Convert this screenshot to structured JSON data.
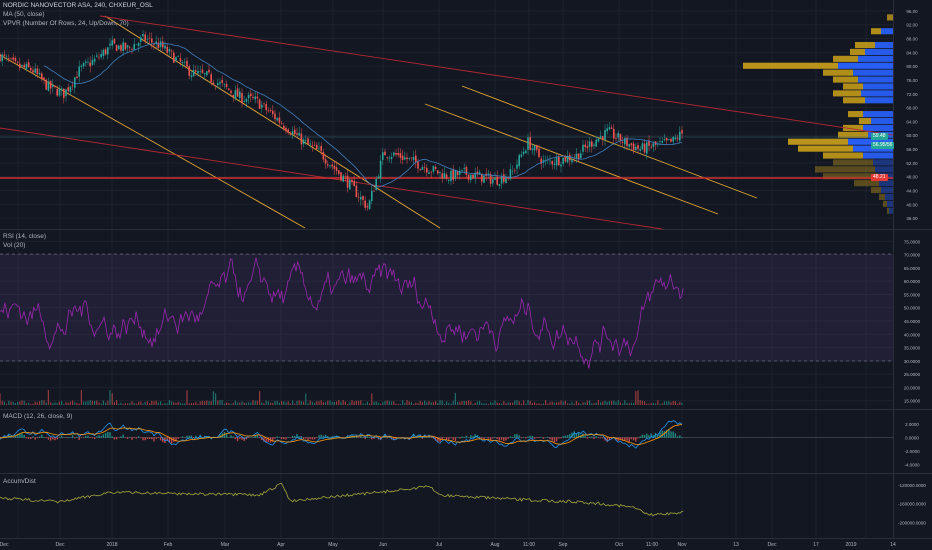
{
  "legend": {
    "symbol": "NORDIC NANOVECTOR ASA, 240, CHXEUR_OSL",
    "ma": "MA (50, close)",
    "vpvr": "VPVR (Number Of Rows, 24, Up/Down, 70)",
    "rsi": "RSI (14, close)",
    "vol": "Vol (20)",
    "macd": "MACD (12, 26, close, 9)",
    "accum": "Accum/Dist"
  },
  "price_tags": {
    "upper": "59.48",
    "current": "56.95/56",
    "support": "48.21"
  },
  "x_axis": [
    "Dec",
    "Dec",
    "2018",
    "Feb",
    "Mar",
    "Apr",
    "May",
    "Jun",
    "Jul",
    "Aug",
    "11:00",
    "Sep",
    "Oct",
    "11:00",
    "Nov",
    "13",
    "Dec",
    "17",
    "2019",
    "14"
  ],
  "colors": {
    "background": "#131722",
    "candle_up": "#26a69a",
    "candle_down": "#ef5350",
    "trendline_orange": "#e3a633",
    "trendline_red": "#b22833",
    "rsi_line": "#9c27b0",
    "macd_line": "#2196f3",
    "signal_line": "#ff9800",
    "vp_up": "#2962ff",
    "vp_down": "#c39a1a"
  },
  "chart_data": [
    {
      "type": "line",
      "name": "price",
      "ylim": [
        34,
        98
      ],
      "y_ticks": [
        "96.00",
        "92.00",
        "88.00",
        "84.00",
        "80.00",
        "76.00",
        "72.00",
        "68.00",
        "64.00",
        "60.00",
        "56.00",
        "52.00",
        "48.00",
        "44.00",
        "40.00",
        "36.00"
      ],
      "x_positions": [
        0,
        4,
        8,
        12,
        16,
        20,
        24,
        28,
        32,
        36,
        40,
        44,
        48,
        52,
        56,
        60,
        64,
        68,
        72,
        76,
        80,
        84,
        88,
        92,
        96,
        100,
        104,
        108,
        112,
        116,
        120,
        124,
        128,
        132,
        136,
        140,
        144,
        148,
        152,
        156,
        160,
        164,
        168,
        172
      ],
      "close": [
        83,
        80,
        79,
        74,
        72,
        79,
        82,
        86,
        85,
        88,
        86,
        82,
        78,
        77,
        74,
        71,
        70,
        66,
        62,
        58,
        55,
        50,
        45,
        39,
        55,
        54,
        52,
        50,
        48,
        49,
        48,
        47,
        49,
        58,
        52,
        53,
        54,
        58,
        61,
        58,
        56,
        57,
        58,
        62
      ]
    },
    {
      "type": "line",
      "name": "rsi",
      "ylim": [
        13,
        77
      ],
      "y_ticks": [
        "75.0000",
        "70.0000",
        "65.0000",
        "60.0000",
        "55.0000",
        "50.0000",
        "45.0000",
        "40.0000",
        "35.0000",
        "30.0000",
        "25.0000",
        "20.0000",
        "15.0000"
      ],
      "levels": [
        70,
        30
      ]
    },
    {
      "type": "line",
      "name": "macd",
      "ylim": [
        -4.8,
        3.6
      ],
      "y_ticks": [
        "2.0000",
        "0.0000",
        "-2.0000",
        "-4.0000"
      ]
    },
    {
      "type": "line",
      "name": "accum_dist",
      "y_ticks": [
        "-120000.0000",
        "-160000.0000",
        "-200000.0000"
      ]
    }
  ]
}
